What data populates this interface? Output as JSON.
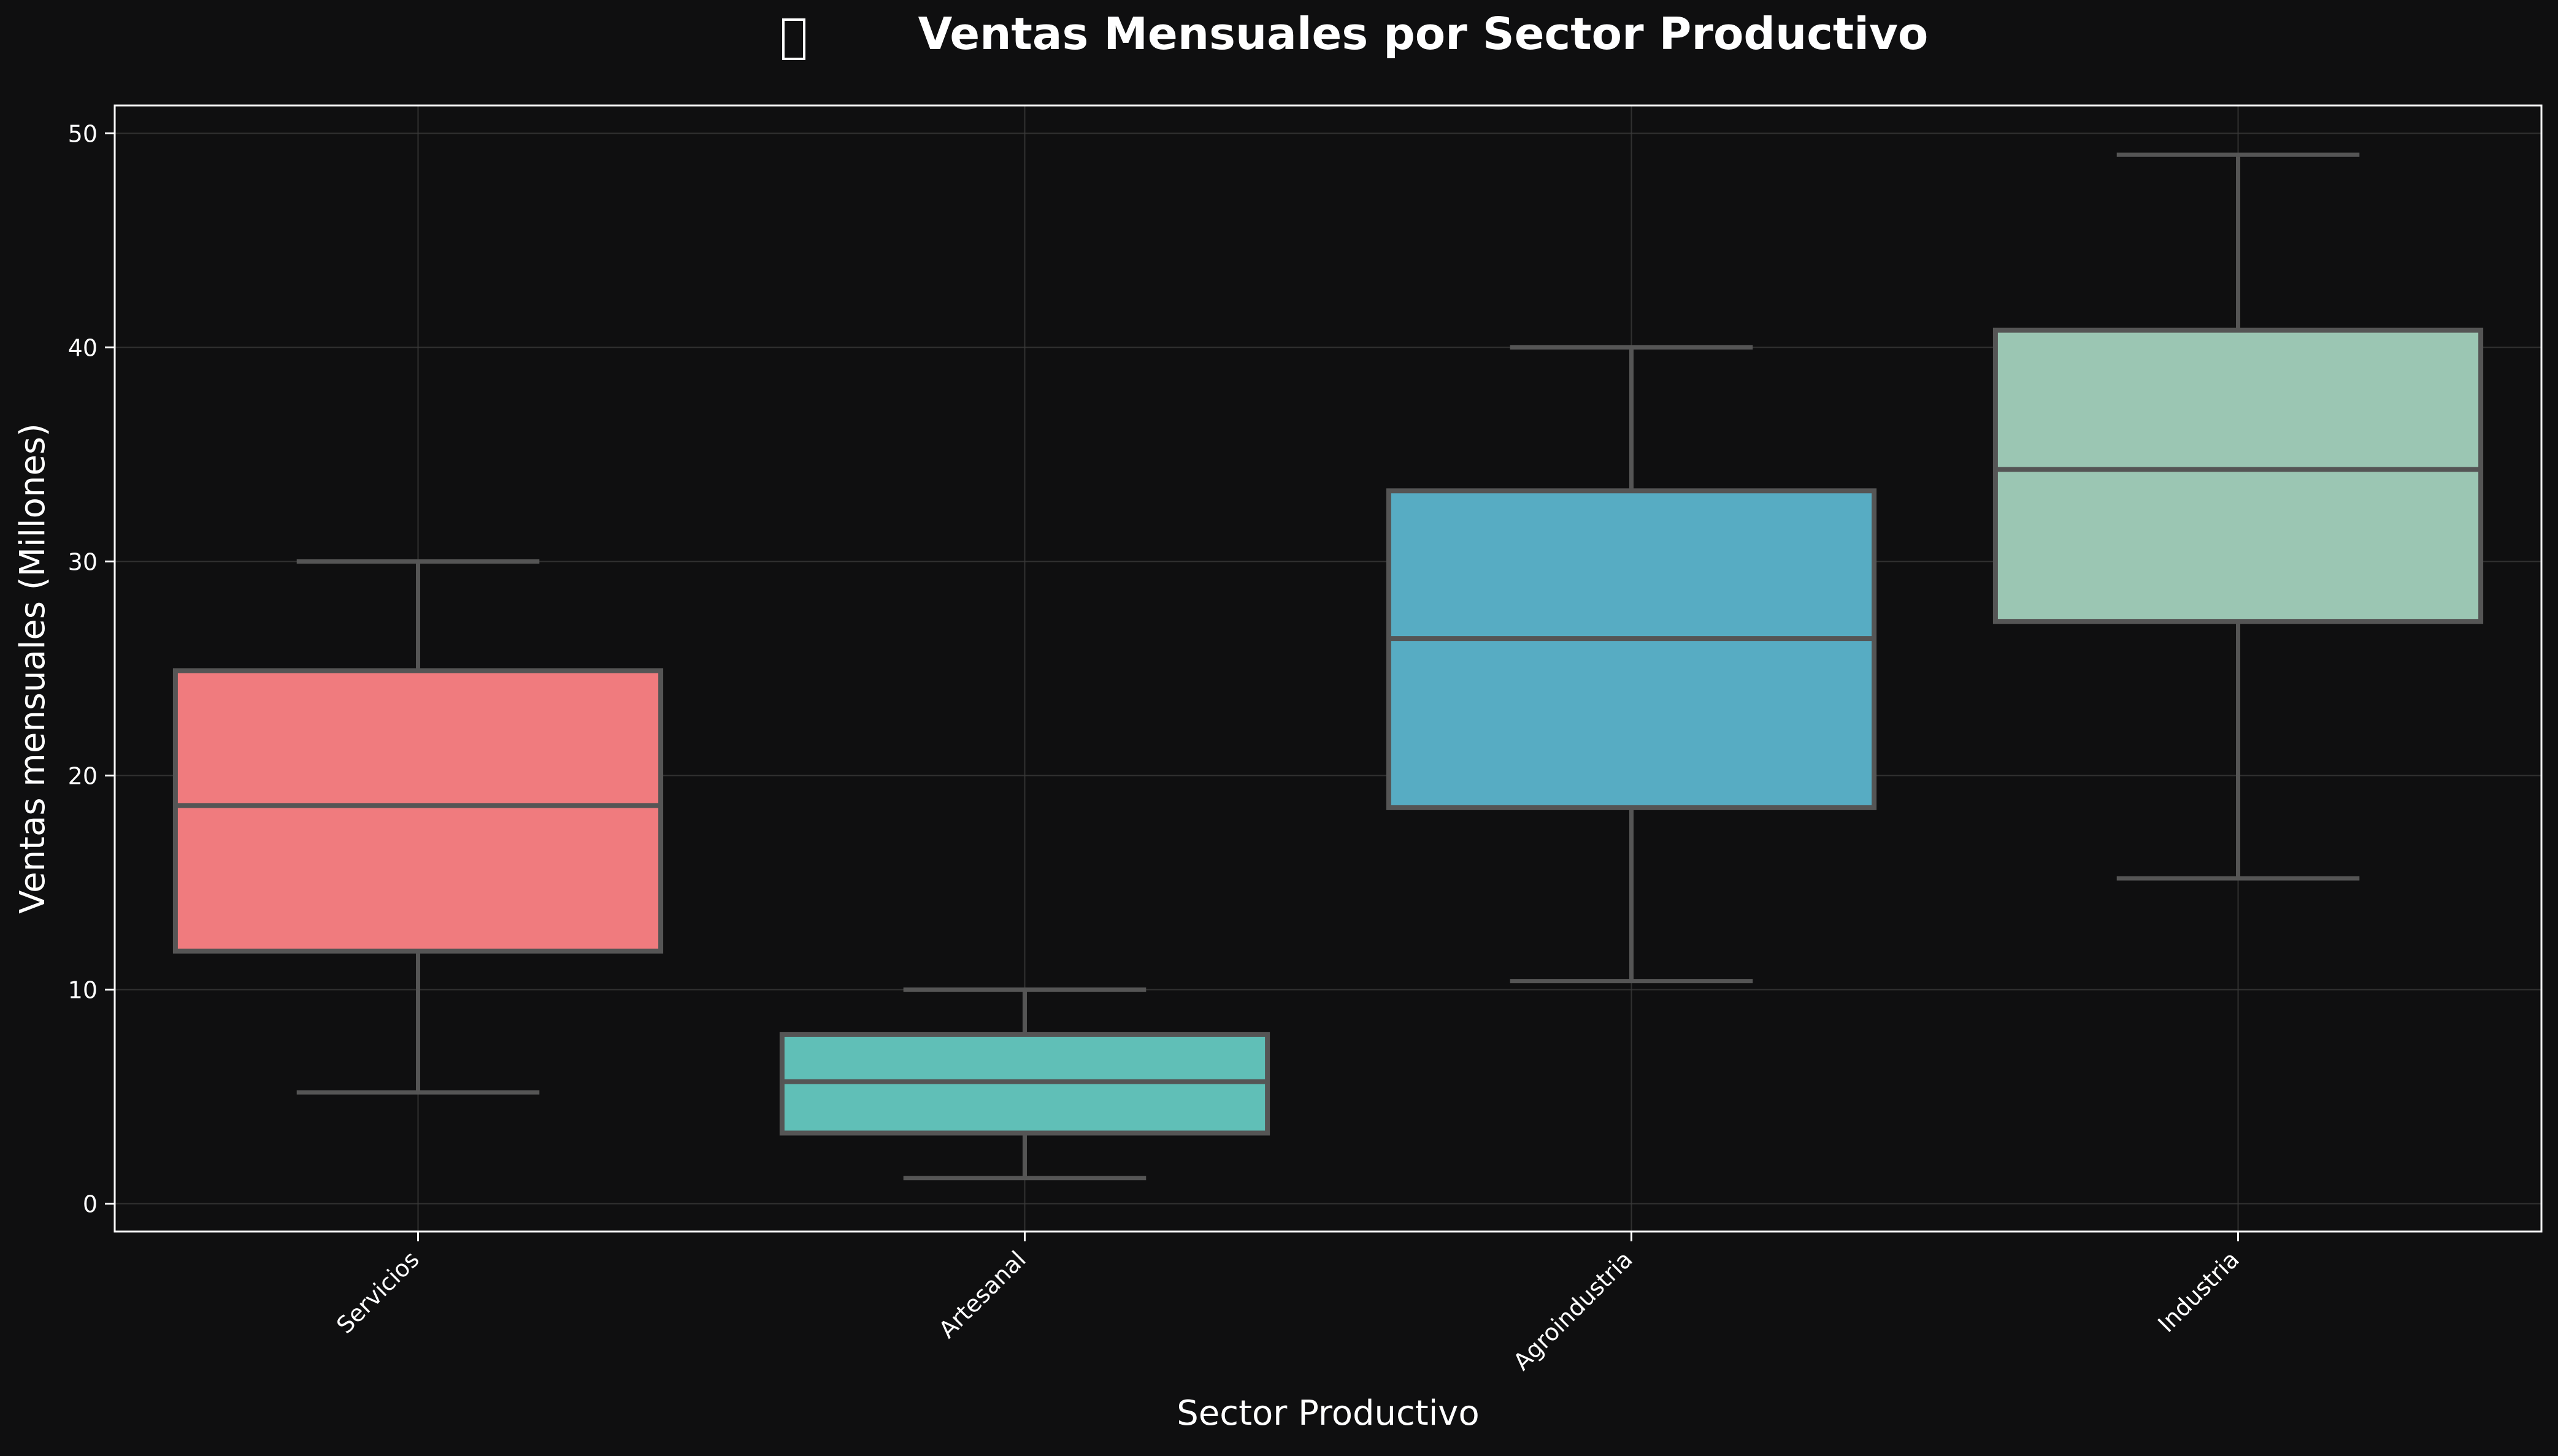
{
  "chart_data": {
    "type": "box",
    "title": "Ventas Mensuales por Sector Productivo",
    "title_icon": "chart-icon",
    "xlabel": "Sector Productivo",
    "ylabel": "Ventas mensuales (Millones)",
    "ylim": [
      -1.3,
      51.3
    ],
    "y_ticks": [
      0,
      10,
      20,
      30,
      40,
      50
    ],
    "grid": true,
    "categories": [
      "Servicios",
      "Artesanal",
      "Agroindustria",
      "Industria"
    ],
    "boxes": [
      {
        "category": "Servicios",
        "min": 5.2,
        "q1": 11.8,
        "median": 18.6,
        "q3": 24.9,
        "max": 30.0,
        "color": "#f07b7e"
      },
      {
        "category": "Artesanal",
        "min": 1.2,
        "q1": 3.3,
        "median": 5.7,
        "q3": 7.9,
        "max": 10.0,
        "color": "#60bfb7"
      },
      {
        "category": "Agroindustria",
        "min": 10.4,
        "q1": 18.5,
        "median": 26.4,
        "q3": 33.3,
        "max": 40.0,
        "color": "#57acc3"
      },
      {
        "category": "Industria",
        "min": 15.2,
        "q1": 27.2,
        "median": 34.3,
        "q3": 40.8,
        "max": 49.0,
        "color": "#9bc6b3"
      }
    ],
    "colors": {
      "background": "#0f0f10",
      "axes": "#ffffff",
      "text": "#ffffff",
      "grid": "#3a3a3a",
      "box_edge": "#555555",
      "whisker": "#555555"
    }
  }
}
